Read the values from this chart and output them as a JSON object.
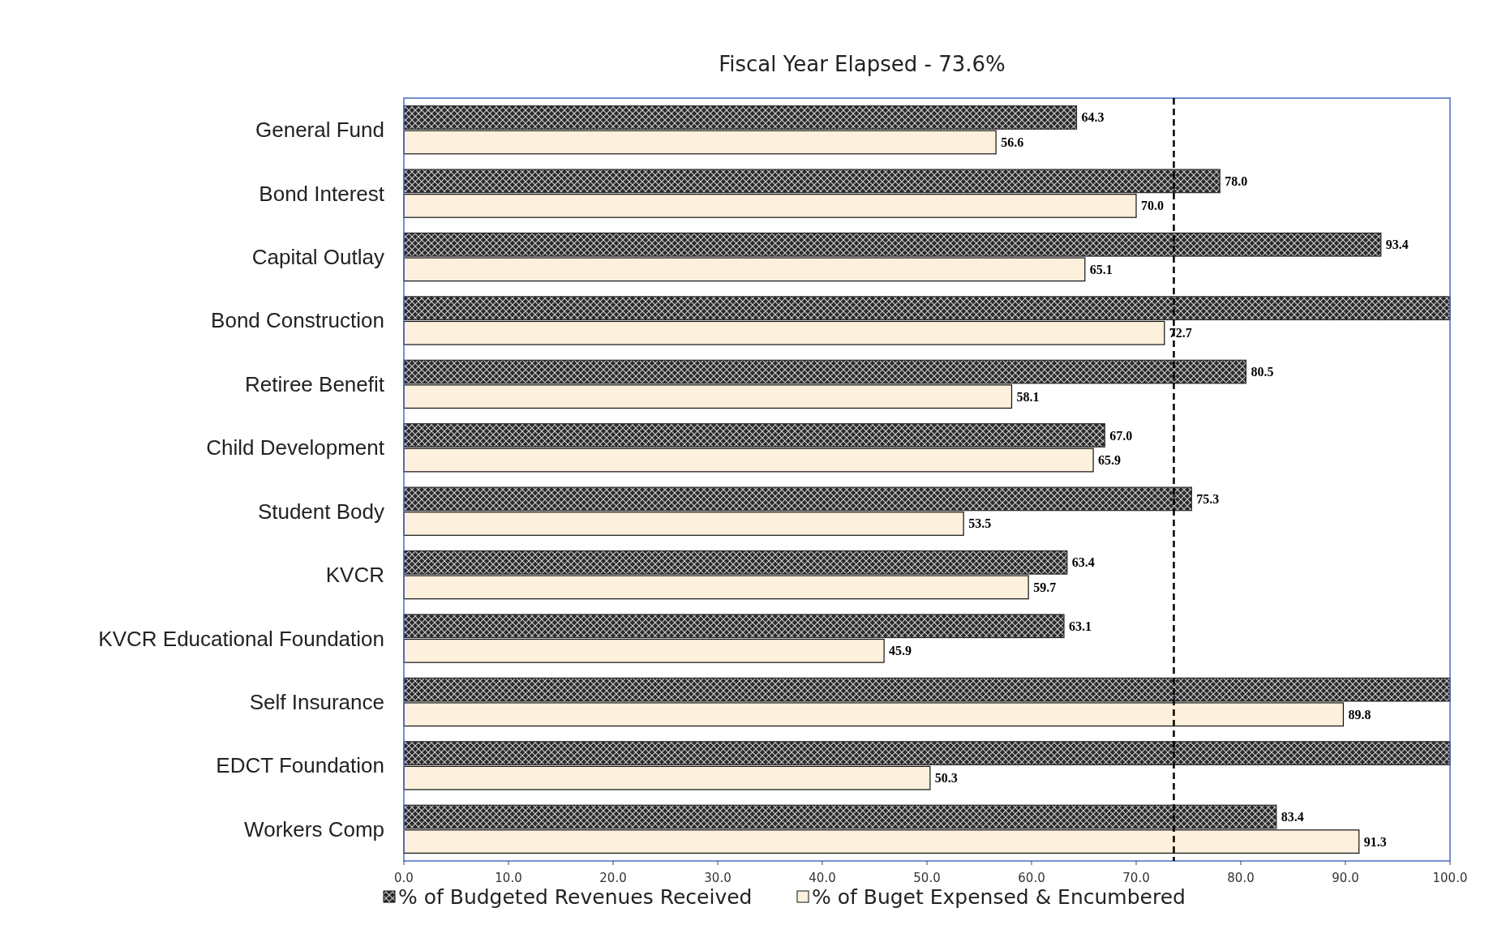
{
  "chart_data": {
    "type": "bar",
    "orientation": "horizontal",
    "title": "Fiscal Year Elapsed - 73.6%",
    "categories": [
      "General Fund",
      "Bond Interest",
      "Capital Outlay",
      "Bond Construction",
      "Retiree Benefit",
      "Child Development",
      "Student Body",
      "KVCR",
      "KVCR Educational Foundation",
      "Self Insurance",
      "EDCT Foundation",
      "Workers Comp"
    ],
    "series": [
      {
        "name": "% of Budgeted Revenues Received",
        "color": "#2a2a2a",
        "values": [
          64.3,
          78.0,
          93.4,
          100,
          80.5,
          67.0,
          75.3,
          63.4,
          63.1,
          100,
          100,
          83.4
        ],
        "value_labels": [
          "64.3",
          "78.0",
          "93.4",
          null,
          "80.5",
          "67.0",
          "75.3",
          "63.4",
          "63.1",
          null,
          null,
          "83.4"
        ]
      },
      {
        "name": "% of Buget Expensed & Encumbered",
        "color": "#fdf0dc",
        "values": [
          56.6,
          70.0,
          65.1,
          72.7,
          58.1,
          65.9,
          53.5,
          59.7,
          45.9,
          89.8,
          50.3,
          91.3
        ],
        "value_labels": [
          "56.6",
          "70.0",
          "65.1",
          "72.7",
          "58.1",
          "65.9",
          "53.5",
          "59.7",
          "45.9",
          "89.8",
          "50.3",
          "91.3"
        ]
      }
    ],
    "xlim": [
      0,
      100
    ],
    "xticks": [
      {
        "value": 0,
        "label": "0.0"
      },
      {
        "value": 10,
        "label": "10.0"
      },
      {
        "value": 20,
        "label": "20.0"
      },
      {
        "value": 30,
        "label": "30.0"
      },
      {
        "value": 40,
        "label": "40.0"
      },
      {
        "value": 50,
        "label": "50.0"
      },
      {
        "value": 60,
        "label": "60.0"
      },
      {
        "value": 70,
        "label": "70.0"
      },
      {
        "value": 80,
        "label": "80.0"
      },
      {
        "value": 90,
        "label": "90.0"
      },
      {
        "value": 100,
        "label": "100.0"
      }
    ],
    "ref_lines": [
      {
        "axis": "x",
        "value": 73.6,
        "line_style": "dashed",
        "color": "#000000"
      }
    ],
    "grid": false,
    "legend": "bottom"
  }
}
